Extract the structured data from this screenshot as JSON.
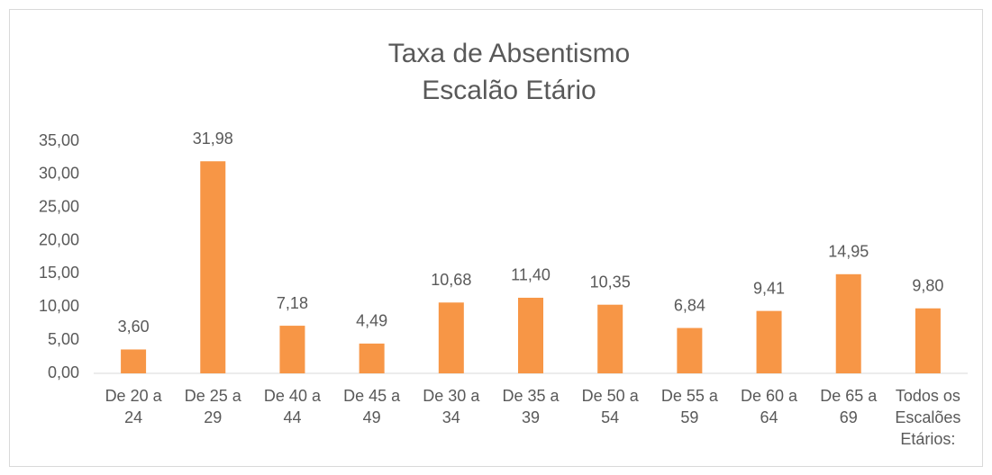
{
  "chart_data": {
    "type": "bar",
    "title": [
      "Taxa de Absentismo",
      "Escalão Etário"
    ],
    "categories": [
      [
        "De 20 a",
        "24"
      ],
      [
        "De 25 a",
        "29"
      ],
      [
        "De 40 a",
        "44"
      ],
      [
        "De 45 a",
        "49"
      ],
      [
        "De 30 a",
        "34"
      ],
      [
        "De 35 a",
        "39"
      ],
      [
        "De 50 a",
        "54"
      ],
      [
        "De 55 a",
        "59"
      ],
      [
        "De 60 a",
        "64"
      ],
      [
        "De 65 a",
        "69"
      ],
      [
        "Todos os",
        "Escalões",
        "Etários:"
      ]
    ],
    "values": [
      3.6,
      31.98,
      7.18,
      4.49,
      10.68,
      11.4,
      10.35,
      6.84,
      9.41,
      14.95,
      9.8
    ],
    "value_labels": [
      "3,60",
      "31,98",
      "7,18",
      "4,49",
      "10,68",
      "11,40",
      "10,35",
      "6,84",
      "9,41",
      "14,95",
      "9,80"
    ],
    "color": "#f79646",
    "ylim": [
      0,
      35
    ],
    "yticks": [
      {
        "value": 0,
        "label": "0,00"
      },
      {
        "value": 5,
        "label": "5,00"
      },
      {
        "value": 10,
        "label": "10,00"
      },
      {
        "value": 15,
        "label": "15,00"
      },
      {
        "value": 20,
        "label": "20,00"
      },
      {
        "value": 25,
        "label": "25,00"
      },
      {
        "value": 30,
        "label": "30,00"
      },
      {
        "value": 35,
        "label": "35,00"
      }
    ],
    "grid": false
  }
}
